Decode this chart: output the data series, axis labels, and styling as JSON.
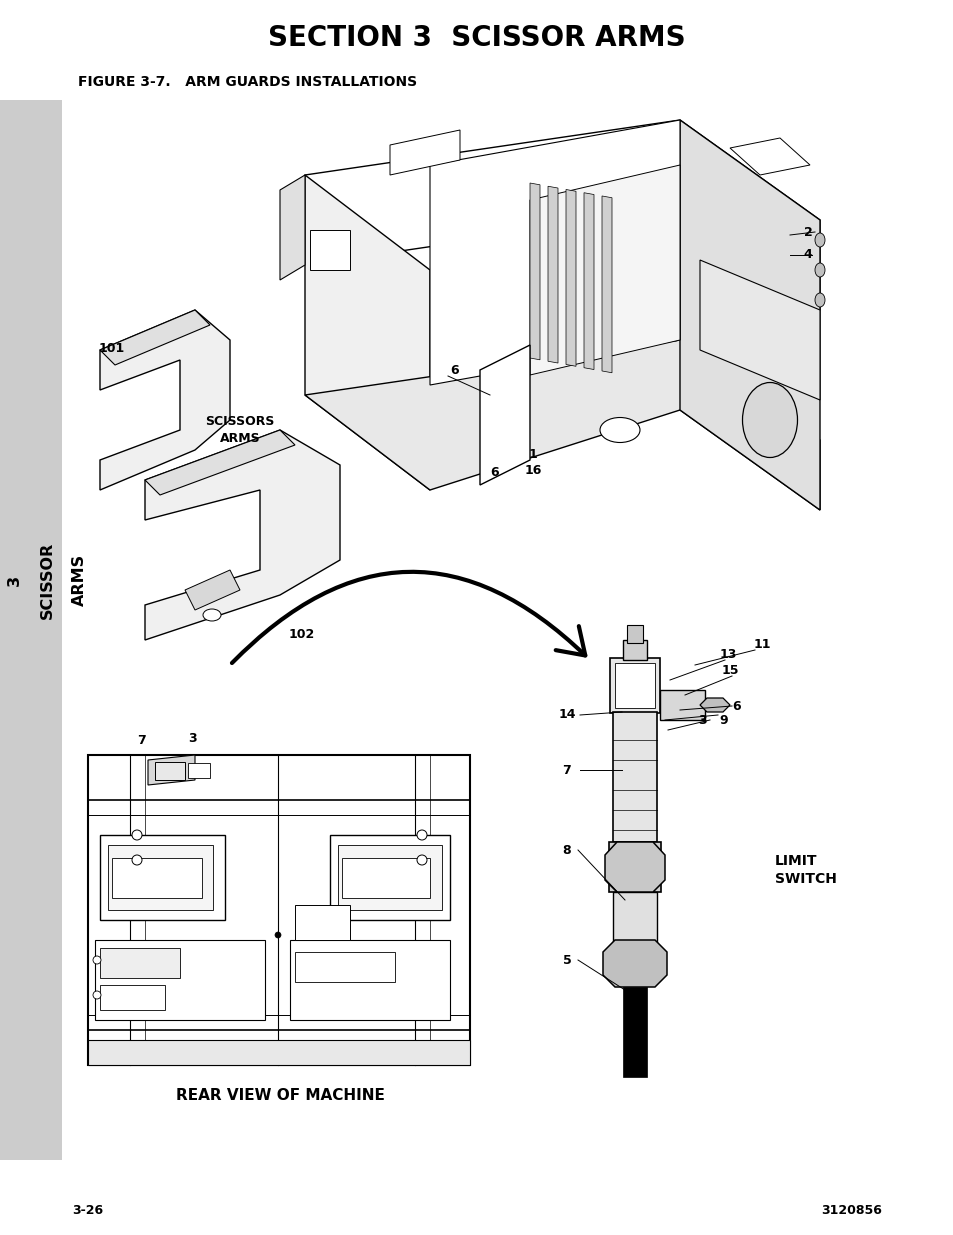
{
  "title": "SECTION 3  SCISSOR ARMS",
  "figure_caption": "FIGURE 3-7.   ARM GUARDS INSTALLATIONS",
  "sidebar_color": "#cccccc",
  "page_left": "3-26",
  "page_right": "3120856",
  "bg_color": "#ffffff"
}
